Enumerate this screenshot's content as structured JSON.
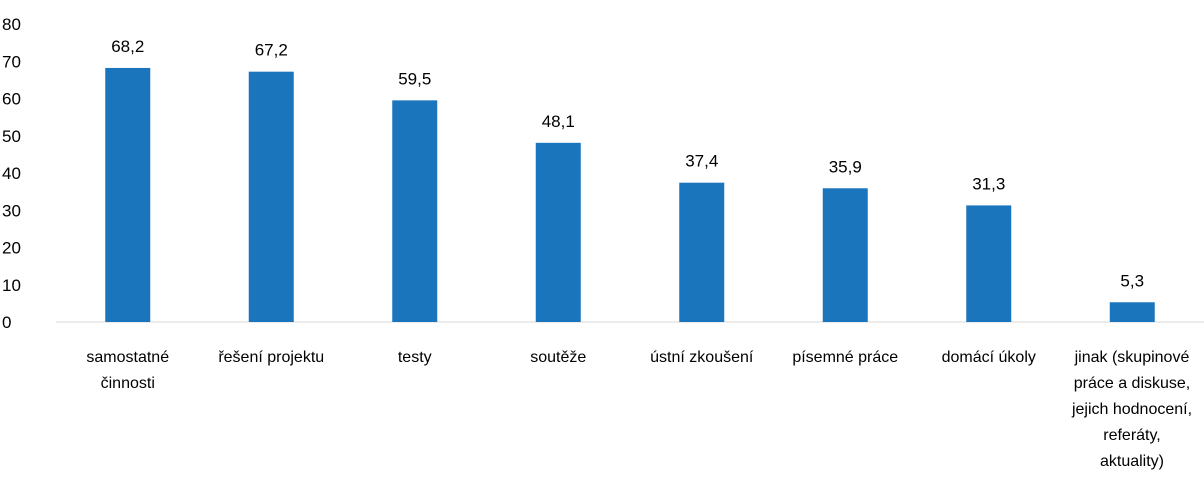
{
  "chart_data": {
    "type": "bar",
    "title": "",
    "xlabel": "",
    "ylabel": "",
    "ylim": [
      0,
      80
    ],
    "yticks": [
      0,
      10,
      20,
      30,
      40,
      50,
      60,
      70,
      80
    ],
    "grid": false,
    "legend": "none",
    "bar_color": "#1b75bc",
    "categories": [
      [
        "samostatné",
        "činnosti"
      ],
      [
        "řešení projektu"
      ],
      [
        "testy"
      ],
      [
        "soutěže"
      ],
      [
        "ústní zkoušení"
      ],
      [
        "písemné práce"
      ],
      [
        "domácí úkoly"
      ],
      [
        "jinak (skupinové",
        "práce a diskuse,",
        "jejich hodnocení,",
        "referáty,",
        "aktuality)"
      ]
    ],
    "values": [
      68.2,
      67.2,
      59.5,
      48.1,
      37.4,
      35.9,
      31.3,
      5.3
    ],
    "data_labels": [
      "68,2",
      "67,2",
      "59,5",
      "48,1",
      "37,4",
      "35,9",
      "31,3",
      "5,3"
    ]
  }
}
